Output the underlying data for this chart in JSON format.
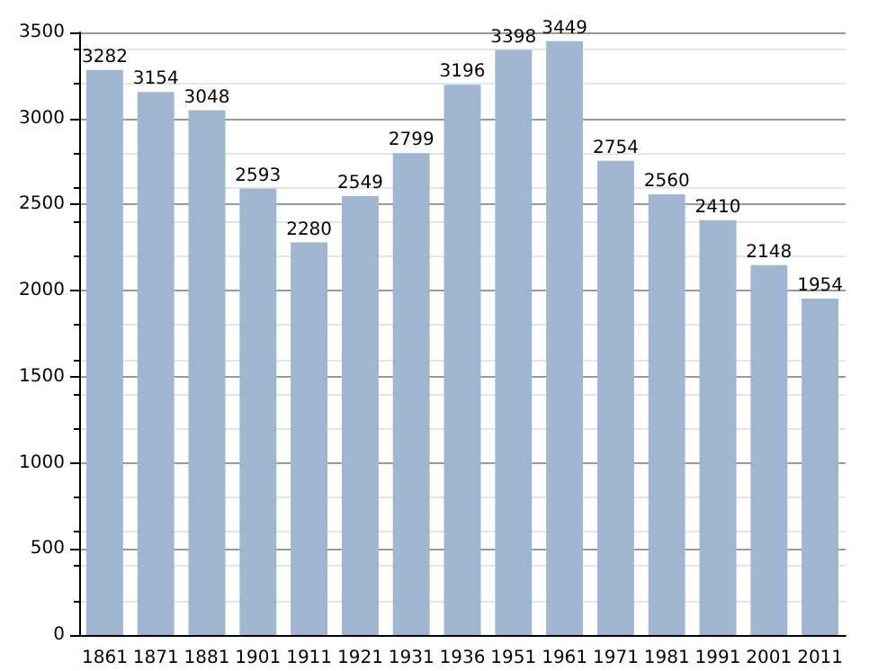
{
  "chart_data": {
    "type": "bar",
    "categories": [
      "1861",
      "1871",
      "1881",
      "1901",
      "1911",
      "1921",
      "1931",
      "1936",
      "1951",
      "1961",
      "1971",
      "1981",
      "1991",
      "2001",
      "2011"
    ],
    "values": [
      3282,
      3154,
      3048,
      2593,
      2280,
      2549,
      2799,
      3196,
      3398,
      3449,
      2754,
      2560,
      2410,
      2148,
      1954
    ],
    "color": "#a0b5d0",
    "ylim": [
      0,
      3500
    ],
    "yticks": [
      0,
      500,
      1000,
      1500,
      2000,
      2500,
      3000,
      3500
    ],
    "grid": "y",
    "data_labels": true
  }
}
